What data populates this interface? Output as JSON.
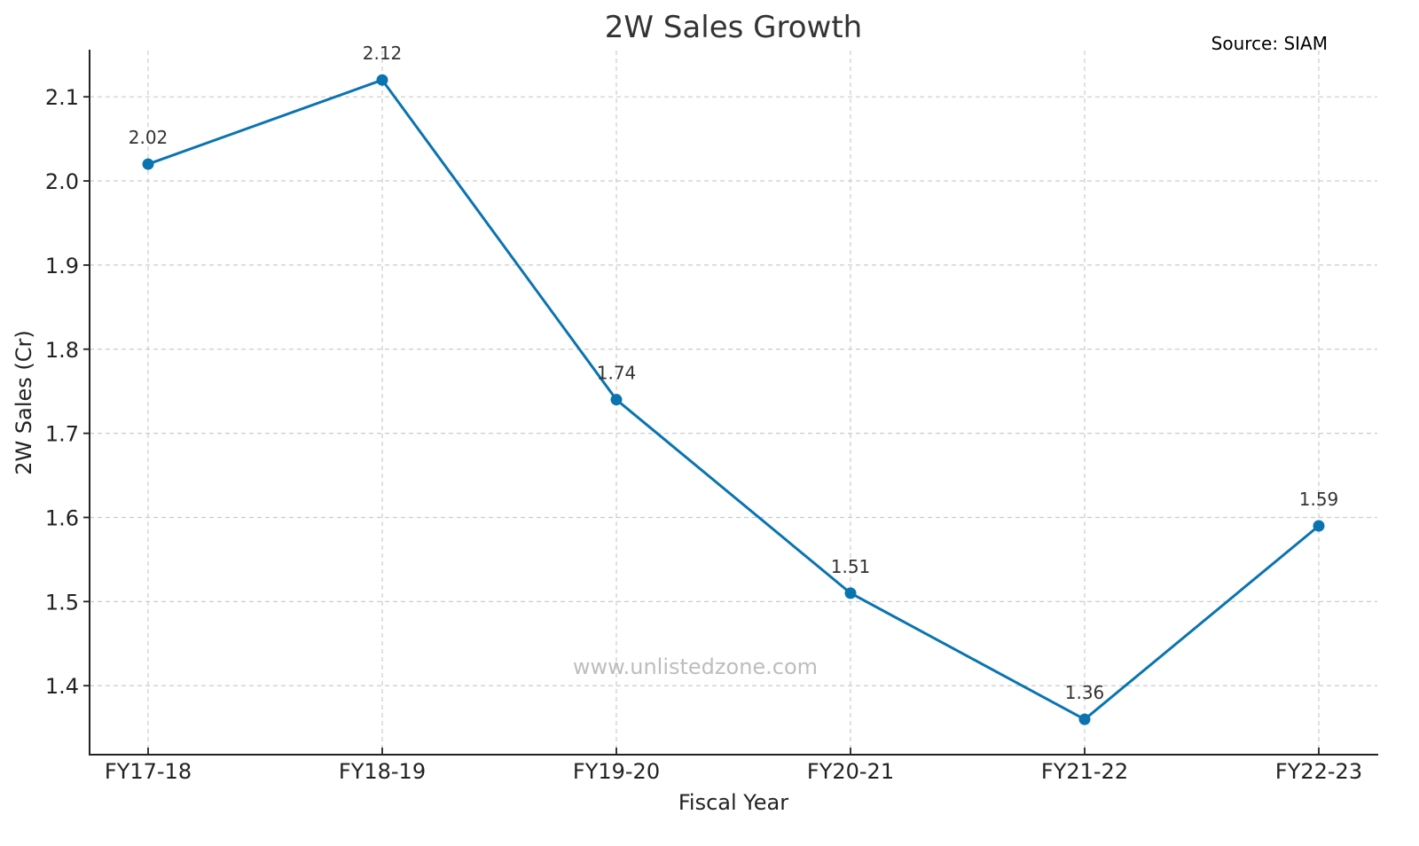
{
  "chart_data": {
    "type": "line",
    "title": "2W Sales Growth",
    "source_note": "Source: SIAM",
    "watermark": "www.unlistedzone.com",
    "xlabel": "Fiscal Year",
    "ylabel": "2W Sales (Cr)",
    "categories": [
      "FY17-18",
      "FY18-19",
      "FY19-20",
      "FY20-21",
      "FY21-22",
      "FY22-23"
    ],
    "series": [
      {
        "name": "2W Sales (Cr)",
        "color": "#0a74b0",
        "values": [
          2.02,
          2.12,
          1.74,
          1.51,
          1.36,
          1.59
        ],
        "data_labels": [
          "2.02",
          "2.12",
          "1.74",
          "1.51",
          "1.36",
          "1.59"
        ]
      }
    ],
    "yticks": [
      "1.4",
      "1.5",
      "1.6",
      "1.7",
      "1.8",
      "1.9",
      "2.0",
      "2.1"
    ],
    "ylim": [
      1.318,
      2.155
    ],
    "grid": true,
    "grid_style": "dashed",
    "legend": null
  }
}
